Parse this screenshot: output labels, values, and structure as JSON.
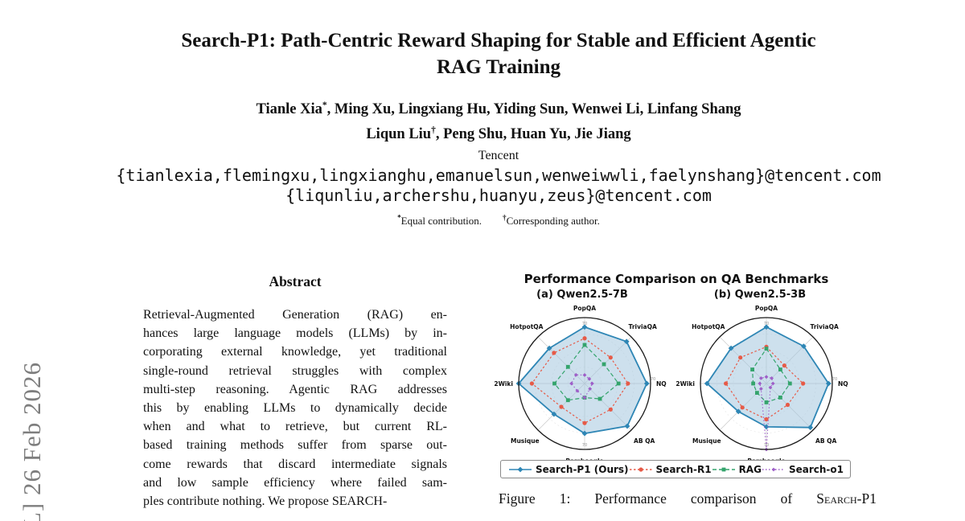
{
  "watermark": {
    "text": "L]  26 Feb 2026"
  },
  "header": {
    "title_lines": [
      "Search-P1: Path-Centric Reward Shaping for Stable and Efficient Agentic",
      "RAG Training"
    ],
    "author_lines": [
      [
        {
          "t": "Tianle Xia"
        },
        {
          "t": "*",
          "sup": true
        },
        {
          "t": ", Ming Xu, Lingxiang Hu, Yiding Sun, Wenwei Li, Linfang Shang"
        }
      ],
      [
        {
          "t": "Liqun Liu"
        },
        {
          "t": "†",
          "sup": true
        },
        {
          "t": ", Peng Shu, Huan Yu, Jie Jiang"
        }
      ]
    ],
    "affiliation": "Tencent",
    "emails": [
      "{tianlexia,flemingxu,lingxianghu,emanuelsun,wenweiwwli,faelynshang}@tencent.com",
      "{liqunliu,archershu,huanyu,zeus}@tencent.com"
    ],
    "footnotes": [
      {
        "sym": "*",
        "text": "Equal contribution."
      },
      {
        "sym": "†",
        "text": "Corresponding author."
      }
    ]
  },
  "abstract": {
    "heading": "Abstract",
    "lines": [
      "Retrieval-Augmented Generation (RAG) en-",
      "hances large language models (LLMs) by in-",
      "corporating external knowledge, yet traditional",
      "single-round retrieval struggles with complex",
      "multi-step reasoning. Agentic RAG addresses",
      "this by enabling LLMs to dynamically decide",
      "when and what to retrieve, but current RL-",
      "based training methods suffer from sparse out-",
      "come rewards that discard intermediate signals",
      "and low sample efficiency where failed sam-",
      "ples contribute nothing. We propose SEARCH-"
    ]
  },
  "figure": {
    "suptitle": "Performance Comparison on QA Benchmarks",
    "caption_prefix": "Figure 1: Performance comparison of ",
    "caption_method": "Search-P1"
  },
  "chart_data": [
    {
      "type": "radar",
      "title": "(a) Qwen2.5-7B",
      "categories": [
        "PopQA",
        "TriviaQA",
        "NQ",
        "AB QA",
        "Bamboogle",
        "Musique",
        "2Wiki",
        "HotpotQA"
      ],
      "rmax": 70,
      "tick_label": "70",
      "grid": true,
      "series": [
        {
          "name": "Search-P1 (Ours)",
          "color": "#2e86b5",
          "fill": "rgba(164,199,223,0.55)",
          "dash": "",
          "marker": "diamond",
          "width": 1.8,
          "msize": 3.4,
          "values": [
            60,
            63,
            66,
            64,
            53,
            46,
            70,
            53
          ]
        },
        {
          "name": "Search-R1",
          "color": "#e65a47",
          "fill": "",
          "dash": "2.5,2.5",
          "marker": "circle",
          "width": 1.2,
          "msize": 2.6,
          "values": [
            48,
            39,
            46,
            39,
            42,
            35,
            56,
            46
          ]
        },
        {
          "name": "RAG",
          "color": "#34a46c",
          "fill": "",
          "dash": "5,3",
          "marker": "square",
          "width": 1.2,
          "msize": 2.4,
          "values": [
            41,
            29,
            36,
            23,
            15,
            25,
            32,
            25
          ]
        },
        {
          "name": "Search-o1",
          "color": "#9e5fc8",
          "fill": "",
          "dash": "1.5,2.5",
          "marker": "diamond",
          "width": 1.1,
          "msize": 2.4,
          "values": [
            9,
            7,
            8,
            8,
            15,
            11,
            14,
            13
          ]
        }
      ]
    },
    {
      "type": "radar",
      "title": "(b) Qwen2.5-3B",
      "categories": [
        "PopQA",
        "TriviaQA",
        "NQ",
        "AB QA",
        "Bamboogle",
        "Musique",
        "2Wiki",
        "HotpotQA"
      ],
      "rmax": 70,
      "tick_label": "70",
      "grid": true,
      "series": [
        {
          "name": "Search-P1 (Ours)",
          "color": "#2e86b5",
          "fill": "rgba(164,199,223,0.55)",
          "dash": "",
          "marker": "diamond",
          "width": 1.8,
          "msize": 3.4,
          "values": [
            60,
            56,
            66,
            66,
            46,
            42,
            63,
            53
          ]
        },
        {
          "name": "Search-R1",
          "color": "#e65a47",
          "fill": "",
          "dash": "2.5,2.5",
          "marker": "circle",
          "width": 1.2,
          "msize": 2.6,
          "values": [
            39,
            27,
            39,
            32,
            38,
            36,
            43,
            39
          ]
        },
        {
          "name": "RAG",
          "color": "#34a46c",
          "fill": "",
          "dash": "5,3",
          "marker": "square",
          "width": 1.2,
          "msize": 2.4,
          "values": [
            37,
            21,
            25,
            21,
            20,
            14,
            14,
            21
          ]
        },
        {
          "name": "Search-o1",
          "color": "#9e5fc8",
          "fill": "",
          "dash": "1.5,2.5",
          "marker": "diamond",
          "width": 1.1,
          "msize": 2.4,
          "values": [
            7,
            8,
            7,
            6,
            70,
            8,
            7,
            8
          ]
        }
      ]
    }
  ]
}
